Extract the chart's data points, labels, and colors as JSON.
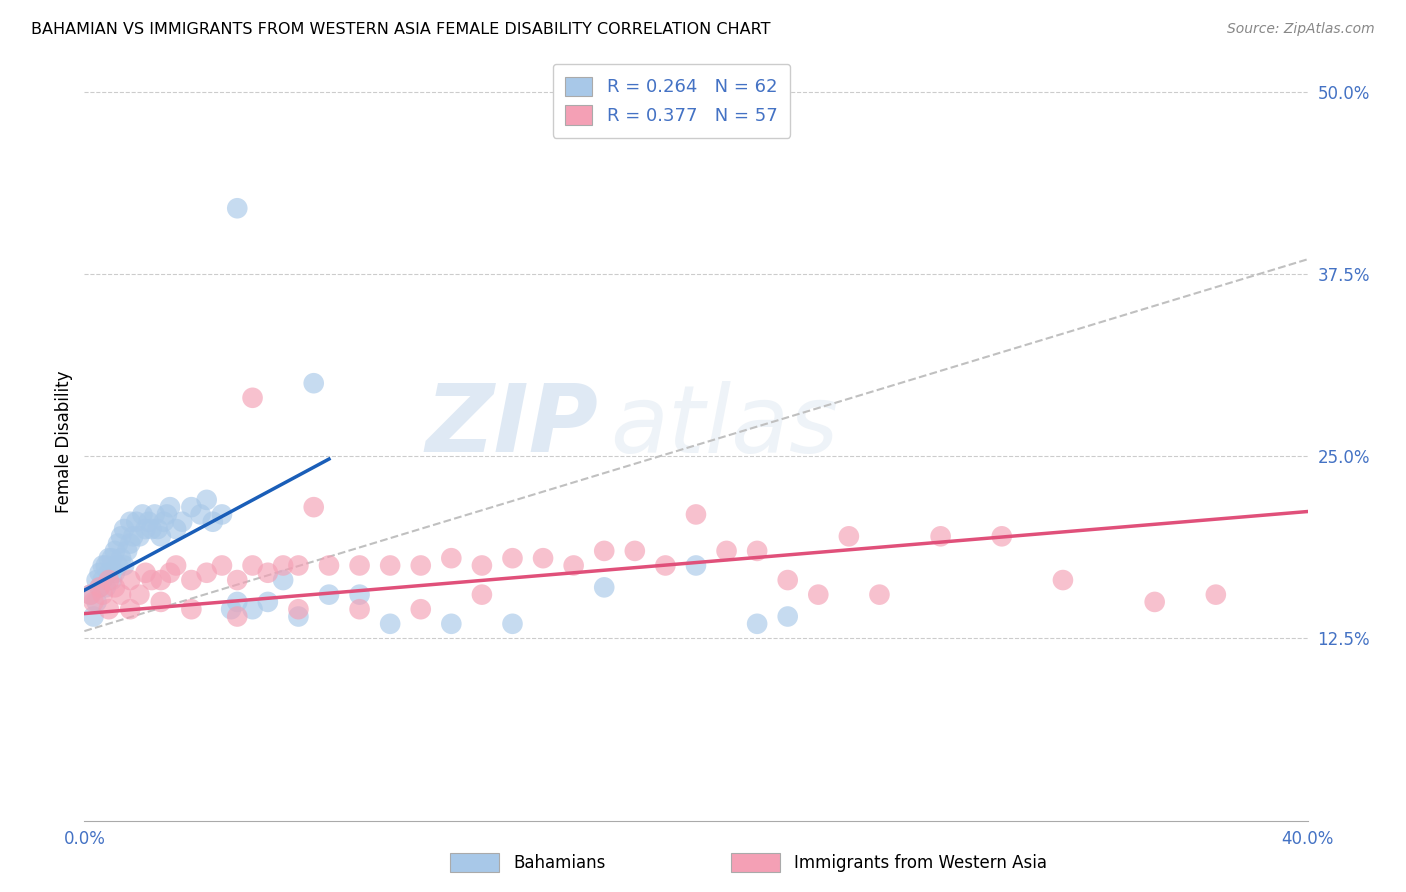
{
  "title": "BAHAMIAN VS IMMIGRANTS FROM WESTERN ASIA FEMALE DISABILITY CORRELATION CHART",
  "source": "Source: ZipAtlas.com",
  "ylabel": "Female Disability",
  "legend_label1": "Bahamians",
  "legend_label2": "Immigrants from Western Asia",
  "R1": 0.264,
  "N1": 62,
  "R2": 0.377,
  "N2": 57,
  "xlim": [
    0.0,
    0.4
  ],
  "ylim": [
    0.0,
    0.52
  ],
  "xticks": [
    0.0,
    0.1,
    0.2,
    0.3,
    0.4
  ],
  "yticks": [
    0.0,
    0.125,
    0.25,
    0.375,
    0.5
  ],
  "ytick_labels": [
    "",
    "12.5%",
    "25.0%",
    "37.5%",
    "50.0%"
  ],
  "xtick_labels": [
    "0.0%",
    "",
    "",
    "",
    "40.0%"
  ],
  "color_blue": "#a8c8e8",
  "color_pink": "#f4a0b5",
  "line_blue": "#1a5eb8",
  "line_pink": "#e0507a",
  "line_dash": "#c0c0c0",
  "background": "#ffffff",
  "watermark_zip": "ZIP",
  "watermark_atlas": "atlas",
  "blue_scatter_x": [
    0.002,
    0.003,
    0.004,
    0.004,
    0.005,
    0.005,
    0.006,
    0.006,
    0.007,
    0.007,
    0.008,
    0.008,
    0.009,
    0.009,
    0.01,
    0.01,
    0.011,
    0.011,
    0.012,
    0.012,
    0.013,
    0.013,
    0.014,
    0.015,
    0.015,
    0.016,
    0.017,
    0.018,
    0.019,
    0.02,
    0.021,
    0.022,
    0.023,
    0.024,
    0.025,
    0.026,
    0.027,
    0.028,
    0.03,
    0.032,
    0.035,
    0.038,
    0.04,
    0.042,
    0.045,
    0.048,
    0.05,
    0.055,
    0.06,
    0.065,
    0.07,
    0.08,
    0.09,
    0.1,
    0.12,
    0.14,
    0.17,
    0.2,
    0.22,
    0.23,
    0.05,
    0.075
  ],
  "blue_scatter_y": [
    0.155,
    0.14,
    0.165,
    0.15,
    0.16,
    0.17,
    0.165,
    0.175,
    0.16,
    0.175,
    0.17,
    0.18,
    0.165,
    0.18,
    0.17,
    0.185,
    0.175,
    0.19,
    0.18,
    0.195,
    0.175,
    0.2,
    0.185,
    0.19,
    0.205,
    0.195,
    0.205,
    0.195,
    0.21,
    0.2,
    0.205,
    0.2,
    0.21,
    0.2,
    0.195,
    0.205,
    0.21,
    0.215,
    0.2,
    0.205,
    0.215,
    0.21,
    0.22,
    0.205,
    0.21,
    0.145,
    0.15,
    0.145,
    0.15,
    0.165,
    0.14,
    0.155,
    0.155,
    0.135,
    0.135,
    0.135,
    0.16,
    0.175,
    0.135,
    0.14,
    0.42,
    0.3
  ],
  "pink_scatter_x": [
    0.002,
    0.003,
    0.005,
    0.006,
    0.008,
    0.01,
    0.012,
    0.015,
    0.018,
    0.02,
    0.022,
    0.025,
    0.028,
    0.03,
    0.035,
    0.04,
    0.045,
    0.05,
    0.055,
    0.06,
    0.065,
    0.07,
    0.08,
    0.09,
    0.1,
    0.11,
    0.12,
    0.13,
    0.14,
    0.15,
    0.16,
    0.17,
    0.18,
    0.19,
    0.2,
    0.21,
    0.22,
    0.23,
    0.24,
    0.25,
    0.26,
    0.28,
    0.3,
    0.32,
    0.35,
    0.37,
    0.008,
    0.015,
    0.025,
    0.035,
    0.05,
    0.07,
    0.09,
    0.11,
    0.13,
    0.055,
    0.075
  ],
  "pink_scatter_y": [
    0.155,
    0.15,
    0.16,
    0.155,
    0.165,
    0.16,
    0.155,
    0.165,
    0.155,
    0.17,
    0.165,
    0.165,
    0.17,
    0.175,
    0.165,
    0.17,
    0.175,
    0.165,
    0.175,
    0.17,
    0.175,
    0.175,
    0.175,
    0.175,
    0.175,
    0.175,
    0.18,
    0.175,
    0.18,
    0.18,
    0.175,
    0.185,
    0.185,
    0.175,
    0.21,
    0.185,
    0.185,
    0.165,
    0.155,
    0.195,
    0.155,
    0.195,
    0.195,
    0.165,
    0.15,
    0.155,
    0.145,
    0.145,
    0.15,
    0.145,
    0.14,
    0.145,
    0.145,
    0.145,
    0.155,
    0.29,
    0.215
  ]
}
